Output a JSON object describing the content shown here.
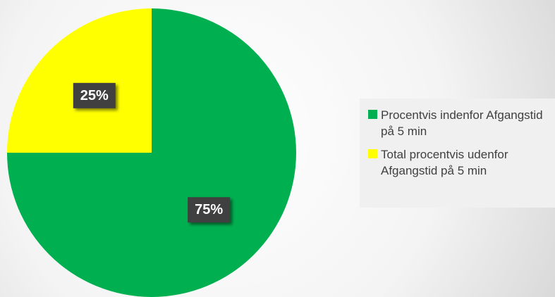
{
  "chart_data": {
    "type": "pie",
    "categories": [
      "Procentvis indenfor Afgangstid på 5 min",
      "Total procentvis udenfor Afgangstid på 5 min"
    ],
    "values": [
      75,
      25
    ],
    "value_labels": [
      "75%",
      "25%"
    ],
    "colors": [
      "#00b050",
      "#ffff00"
    ],
    "legend": "right"
  }
}
